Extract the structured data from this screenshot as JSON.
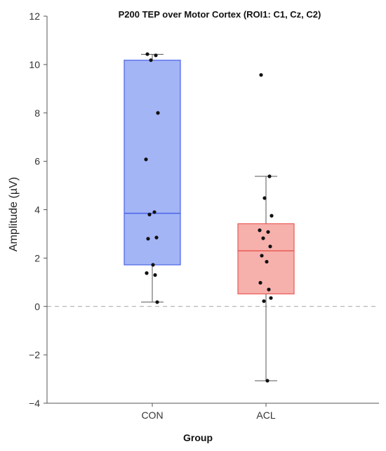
{
  "chart_data": {
    "type": "boxplot",
    "title": "P200 TEP over Motor Cortex (ROI1: C1, Cz, C2)",
    "xlabel": "Group",
    "ylabel": "Amplitude (µV)",
    "ylim": [
      -4,
      12
    ],
    "yticks": [
      "−4",
      "−2",
      "0",
      "2",
      "4",
      "6",
      "8",
      "10",
      "12"
    ],
    "ytick_values": [
      -4,
      -2,
      0,
      2,
      4,
      6,
      8,
      10,
      12
    ],
    "reference_line": 0,
    "categories": [
      "CON",
      "ACL"
    ],
    "groups": [
      {
        "name": "CON",
        "color": "#a3b5f5",
        "edge_color": "#4a63e8",
        "q1": 1.72,
        "median": 3.85,
        "q3": 10.18,
        "whisker_low": 0.18,
        "whisker_high": 10.42,
        "points": [
          10.43,
          10.38,
          10.18,
          8.0,
          6.08,
          3.9,
          3.8,
          2.85,
          2.8,
          1.72,
          1.38,
          1.3,
          0.18
        ]
      },
      {
        "name": "ACL",
        "color": "#f6b1ac",
        "edge_color": "#ea5a55",
        "q1": 0.52,
        "median": 2.3,
        "q3": 3.42,
        "whisker_low": -3.07,
        "whisker_high": 5.38,
        "points": [
          9.57,
          5.38,
          4.48,
          3.75,
          3.15,
          3.08,
          2.82,
          2.48,
          2.1,
          1.85,
          0.98,
          0.7,
          0.35,
          0.22,
          -3.07
        ]
      }
    ]
  }
}
